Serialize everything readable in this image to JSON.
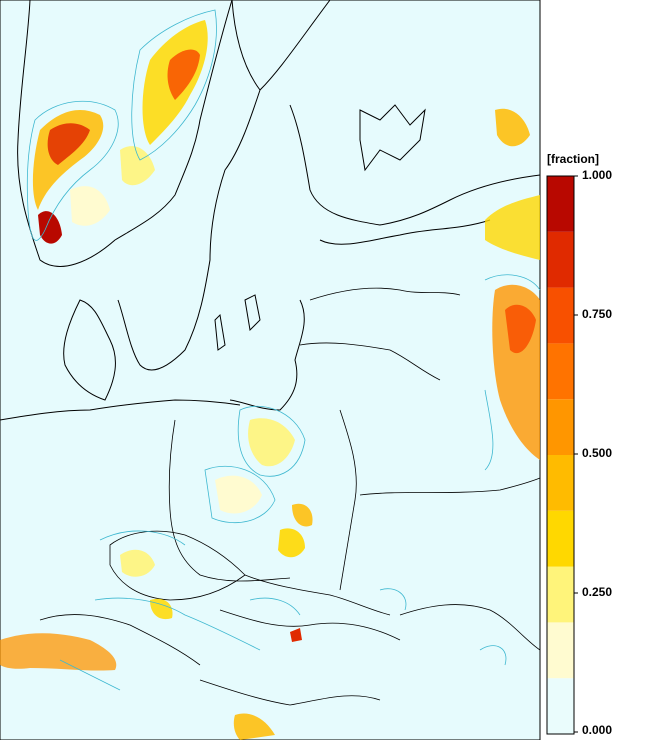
{
  "map": {
    "background_color": "#e6fbfd",
    "coastline_color": "#000000",
    "contour_color": "#3fb8d0"
  },
  "legend": {
    "title": "[fraction]",
    "tick_labels": [
      "1.000",
      "0.750",
      "0.500",
      "0.250",
      "0.000"
    ],
    "colors": [
      "#eafcfc",
      "#fffbd0",
      "#fff47a",
      "#ffd800",
      "#ffbb00",
      "#ff9600",
      "#ff7300",
      "#f85000",
      "#e02a00",
      "#b80800"
    ]
  }
}
